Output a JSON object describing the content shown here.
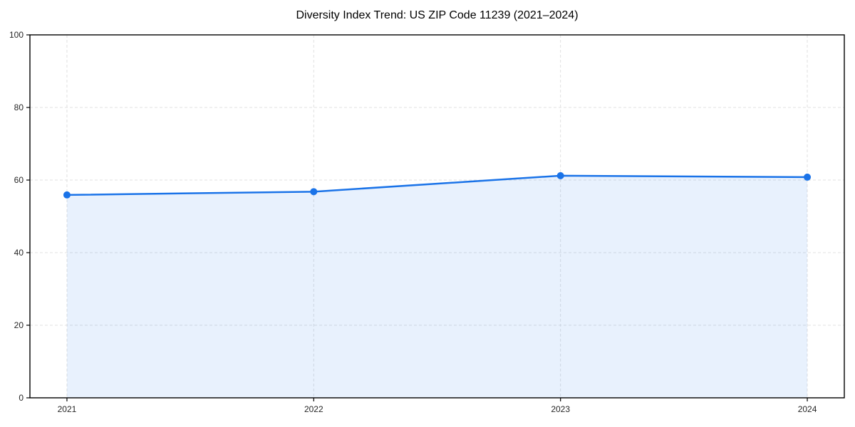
{
  "chart_data": {
    "type": "area",
    "title": "Diversity Index Trend: US ZIP Code 11239 (2021–2024)",
    "categories": [
      "2021",
      "2022",
      "2023",
      "2024"
    ],
    "series": [
      {
        "name": "Diversity Index",
        "values": [
          55.9,
          56.8,
          61.2,
          60.8
        ]
      }
    ],
    "xlabel": "",
    "ylabel": "",
    "ylim": [
      0,
      100
    ],
    "y_ticks": [
      0,
      20,
      40,
      60,
      80,
      100
    ],
    "grid": "dashed-both-axes",
    "legend_position": "none",
    "line_color": "#1a73e8",
    "marker_color": "#1a73e8",
    "fill_color": "#1a73e8",
    "fill_opacity": 0.1,
    "gridline_color": "#e0e0e0",
    "spine_color": "#000000",
    "tick_label_color": "#262626",
    "marker": "circle"
  }
}
